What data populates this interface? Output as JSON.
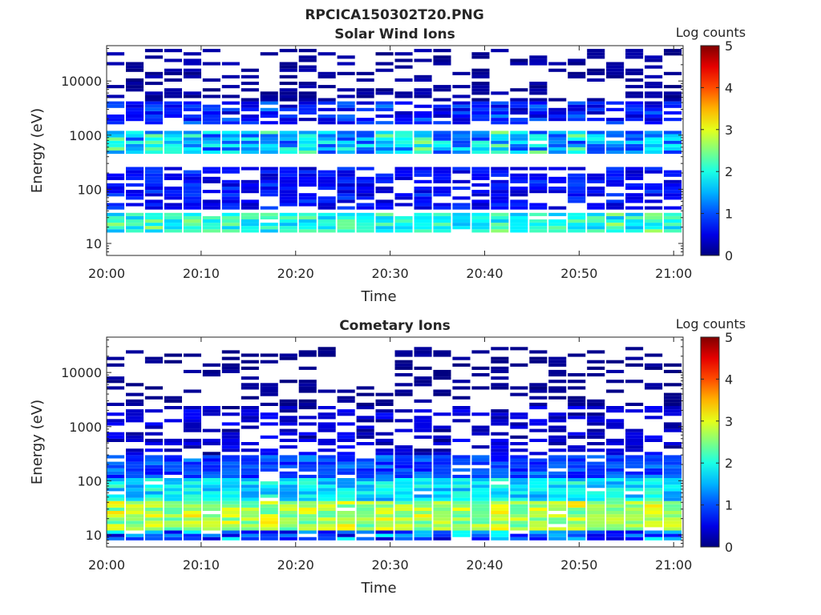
{
  "figure": {
    "title": "RPCICA150302T20.PNG"
  },
  "chart_data": [
    {
      "type": "heatmap",
      "title": "Solar Wind Ions",
      "xlabel": "Time",
      "ylabel": "Energy (eV)",
      "x_ticks": [
        "20:00",
        "20:10",
        "20:20",
        "20:30",
        "20:40",
        "20:50",
        "21:00"
      ],
      "x_range": [
        "20:00",
        "21:01"
      ],
      "y_scale": "log",
      "y_ticks": [
        10,
        100,
        1000,
        10000
      ],
      "y_tick_labels": [
        "10",
        "100",
        "1000",
        "10000"
      ],
      "y_range": [
        6,
        45000
      ],
      "colorbar": {
        "label": "Log counts",
        "min": 0,
        "max": 5,
        "ticks": [
          "0",
          "1",
          "2",
          "3",
          "4",
          "5"
        ],
        "colormap": "jet"
      },
      "grid": false,
      "description_of_values": "log10 counts per energy bin; background mostly 0-1 (dark blue) with enhanced bands",
      "bands": [
        {
          "energy_range_eV": [
            15,
            35
          ],
          "level_range": [
            1.5,
            2.7
          ],
          "note": "periodic cyan/green band, peak every ~2.5 min"
        },
        {
          "energy_range_eV": [
            40,
            250
          ],
          "level_range": [
            0.3,
            1.0
          ],
          "note": "dense dark-blue block"
        },
        {
          "energy_range_eV": [
            450,
            1200
          ],
          "level_range": [
            0.8,
            2.6
          ],
          "note": "solar wind peak, green patches near 20:18-20:28 and 20:47-20:58"
        },
        {
          "energy_range_eV": [
            1500,
            4000
          ],
          "level_range": [
            0.2,
            1.3
          ],
          "note": "sparse blue blocks"
        },
        {
          "energy_range_eV": [
            4000,
            40000
          ],
          "level_range": [
            0.0,
            0.3
          ],
          "note": "sparse single-count lines"
        }
      ]
    },
    {
      "type": "heatmap",
      "title": "Cometary Ions",
      "xlabel": "Time",
      "ylabel": "Energy (eV)",
      "x_ticks": [
        "20:00",
        "20:10",
        "20:20",
        "20:30",
        "20:40",
        "20:50",
        "21:00"
      ],
      "x_range": [
        "20:00",
        "21:01"
      ],
      "y_scale": "log",
      "y_ticks": [
        10,
        100,
        1000,
        10000
      ],
      "y_tick_labels": [
        "10",
        "100",
        "1000",
        "10000"
      ],
      "y_range": [
        6,
        45000
      ],
      "colorbar": {
        "label": "Log counts",
        "min": 0,
        "max": 5,
        "ticks": [
          "0",
          "1",
          "2",
          "3",
          "4",
          "5"
        ],
        "colormap": "jet"
      },
      "grid": false,
      "description_of_values": "log10 counts per energy bin",
      "bands": [
        {
          "energy_range_eV": [
            8,
            12
          ],
          "level_range": [
            0.3,
            2.0
          ],
          "note": "alternating dark/cyan cells"
        },
        {
          "energy_range_eV": [
            12,
            40
          ],
          "level_range": [
            2.2,
            3.3
          ],
          "note": "main yellow/green cometary band"
        },
        {
          "energy_range_eV": [
            40,
            120
          ],
          "level_range": [
            1.3,
            2.3
          ],
          "note": "cyan/light-blue band"
        },
        {
          "energy_range_eV": [
            120,
            300
          ],
          "level_range": [
            0.6,
            1.4
          ],
          "note": "blue band"
        },
        {
          "energy_range_eV": [
            300,
            2500
          ],
          "level_range": [
            0.0,
            0.7
          ],
          "note": "sparse dark blue"
        },
        {
          "energy_range_eV": [
            2500,
            30000
          ],
          "level_range": [
            0.0,
            0.2
          ],
          "note": "isolated counts"
        }
      ]
    }
  ]
}
